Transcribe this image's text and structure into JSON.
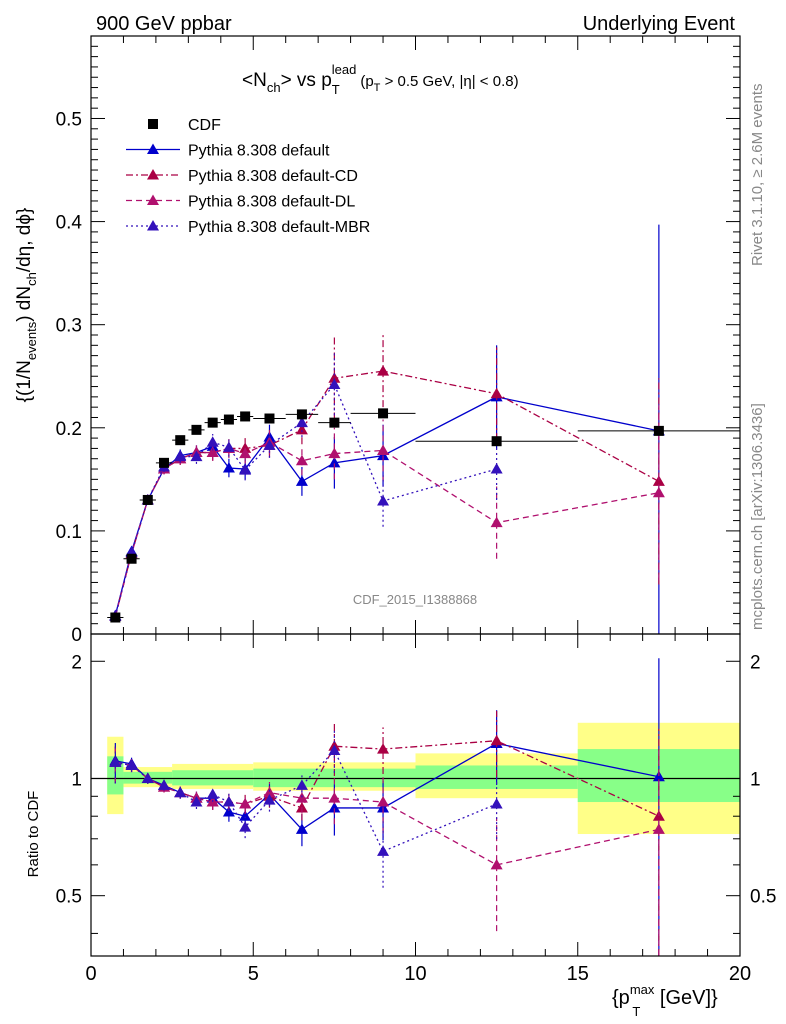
{
  "header": {
    "left": "900 GeV ppbar",
    "right": "Underlying Event"
  },
  "side": {
    "rivet": "Rivet 3.1.10, ≥ 2.6M events",
    "mcplots": "mcplots.cern.ch [arXiv:1306.3436]"
  },
  "watermark": "CDF_2015_I1388868",
  "title": {
    "main": "<N",
    "main_sub": "ch",
    "mid": "> vs p",
    "mid_sup": "lead",
    "mid_sub": "T",
    "cut_pre": "(p",
    "cut_sub": "T",
    "cut_post": " > 0.5 GeV, |η| < 0.8)"
  },
  "ylabel": {
    "a": "{(1/N",
    "a_sub": "events",
    "b": ") dN",
    "b_sub": "ch",
    "c": "/dη, dϕ}"
  },
  "ratio_ylabel": "Ratio to CDF",
  "xlabel": {
    "pre": "{p",
    "sup": "max",
    "sub": "T",
    "post": " [GeV]}"
  },
  "colors": {
    "cdf": "#000000",
    "default": "#0000cc",
    "cd": "#aa0044",
    "dl": "#b0106e",
    "mbr": "#3311bb",
    "band_yellow": "#ffff88",
    "band_green": "#88ff88"
  },
  "chart_data": {
    "type": "scatter",
    "xlim": [
      0,
      20
    ],
    "ylim": [
      0,
      0.58
    ],
    "ratio_ylim": [
      0.35,
      2.35
    ],
    "ratio_scale": "log",
    "x_ticks": [
      "0",
      "5",
      "10",
      "15",
      "20"
    ],
    "y_ticks": [
      "0",
      "0.1",
      "0.2",
      "0.3",
      "0.4",
      "0.5"
    ],
    "ratio_ticks": [
      "0.5",
      "1",
      "2"
    ],
    "legend_position": "top-left",
    "data": {
      "name": "CDF",
      "x": [
        0.75,
        1.25,
        1.75,
        2.25,
        2.75,
        3.25,
        3.75,
        4.25,
        4.75,
        5.5,
        6.5,
        7.5,
        9.0,
        12.5,
        17.5
      ],
      "xerr": [
        0.25,
        0.25,
        0.25,
        0.25,
        0.25,
        0.25,
        0.25,
        0.25,
        0.25,
        0.5,
        0.5,
        0.5,
        1.0,
        2.5,
        2.5
      ],
      "y": [
        0.016,
        0.073,
        0.13,
        0.166,
        0.188,
        0.198,
        0.205,
        0.208,
        0.211,
        0.209,
        0.213,
        0.205,
        0.214,
        0.187,
        0.197
      ]
    },
    "bands": {
      "yellow": [
        [
          0.5,
          1.0,
          0.81,
          1.28
        ],
        [
          1.0,
          2.5,
          0.95,
          1.07
        ],
        [
          2.5,
          5.0,
          0.94,
          1.09
        ],
        [
          5.0,
          10.0,
          0.93,
          1.1
        ],
        [
          10.0,
          15.0,
          0.89,
          1.16
        ],
        [
          15.0,
          20.0,
          0.72,
          1.39
        ]
      ],
      "green": [
        [
          0.5,
          1.0,
          0.91,
          1.14
        ],
        [
          1.0,
          2.5,
          0.97,
          1.04
        ],
        [
          2.5,
          5.0,
          0.96,
          1.05
        ],
        [
          5.0,
          10.0,
          0.95,
          1.06
        ],
        [
          10.0,
          15.0,
          0.94,
          1.08
        ],
        [
          15.0,
          20.0,
          0.87,
          1.19
        ]
      ]
    },
    "series": [
      {
        "name": "Pythia 8.308 default",
        "style": "solid",
        "color": "#0000cc",
        "y": [
          0.018,
          0.08,
          0.13,
          0.16,
          0.173,
          0.176,
          0.182,
          0.161,
          0.16,
          0.191,
          0.148,
          0.166,
          0.173,
          0.23,
          0.197
        ],
        "err": [
          0.002,
          0.003,
          0.004,
          0.005,
          0.006,
          0.007,
          0.008,
          0.009,
          0.01,
          0.012,
          0.014,
          0.025,
          0.03,
          0.05,
          0.2
        ],
        "ratio": [
          1.11,
          1.09,
          1.0,
          0.96,
          0.92,
          0.89,
          0.89,
          0.82,
          0.8,
          0.91,
          0.74,
          0.84,
          0.84,
          1.23,
          1.01
        ]
      },
      {
        "name": "Pythia 8.308 default-CD",
        "style": "dashdot",
        "color": "#aa0044",
        "y": [
          0.017,
          0.078,
          0.13,
          0.16,
          0.17,
          0.176,
          0.176,
          0.18,
          0.18,
          0.183,
          0.198,
          0.248,
          0.255,
          0.233,
          0.148
        ],
        "err": [
          0.002,
          0.003,
          0.004,
          0.005,
          0.006,
          0.007,
          0.008,
          0.009,
          0.01,
          0.012,
          0.014,
          0.04,
          0.035,
          0.045,
          0.1
        ],
        "ratio": [
          1.1,
          1.08,
          1.0,
          0.95,
          0.92,
          0.89,
          0.87,
          0.87,
          0.86,
          0.9,
          0.84,
          1.21,
          1.19,
          1.25,
          0.8
        ]
      },
      {
        "name": "Pythia 8.308 default-DL",
        "style": "dashed",
        "color": "#b0106e",
        "y": [
          0.017,
          0.078,
          0.13,
          0.16,
          0.17,
          0.176,
          0.176,
          0.18,
          0.175,
          0.186,
          0.168,
          0.175,
          0.178,
          0.108,
          0.137
        ],
        "err": [
          0.002,
          0.003,
          0.004,
          0.005,
          0.006,
          0.007,
          0.008,
          0.009,
          0.01,
          0.012,
          0.014,
          0.025,
          0.03,
          0.035,
          0.085
        ],
        "ratio": [
          1.1,
          1.08,
          1.0,
          0.95,
          0.92,
          0.89,
          0.87,
          0.87,
          0.86,
          0.92,
          0.89,
          0.89,
          0.87,
          0.6,
          0.74
        ]
      },
      {
        "name": "Pythia 8.308 default-MBR",
        "style": "dotted",
        "color": "#3311bb",
        "y": [
          0.017,
          0.079,
          0.13,
          0.162,
          0.172,
          0.172,
          0.186,
          0.181,
          0.159,
          0.183,
          0.205,
          0.242,
          0.129,
          0.16,
          null
        ],
        "err": [
          0.002,
          0.003,
          0.004,
          0.005,
          0.006,
          0.007,
          0.008,
          0.009,
          0.01,
          0.012,
          0.014,
          0.03,
          0.025,
          0.03,
          null
        ],
        "ratio": [
          1.1,
          1.08,
          1.0,
          0.96,
          0.92,
          0.87,
          0.91,
          0.87,
          0.75,
          0.88,
          0.96,
          1.18,
          0.65,
          0.86,
          null
        ]
      }
    ]
  }
}
